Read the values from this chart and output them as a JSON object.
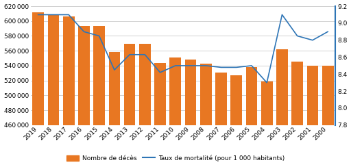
{
  "years": [
    "2019",
    "2018",
    "2017",
    "2016",
    "2015",
    "2014",
    "2013",
    "2012",
    "2011",
    "2010",
    "2009",
    "2008",
    "2007",
    "2006",
    "2005",
    "2004",
    "2003",
    "2002",
    "2001",
    "2000"
  ],
  "deaths": [
    612000,
    608000,
    606000,
    593000,
    593000,
    558000,
    569000,
    569000,
    544000,
    551000,
    548000,
    543000,
    531000,
    527000,
    538000,
    519000,
    562000,
    545000,
    540000,
    540000
  ],
  "mortality_rate": [
    9.1,
    9.1,
    9.1,
    8.9,
    8.85,
    8.45,
    8.63,
    8.63,
    8.42,
    8.5,
    8.5,
    8.5,
    8.48,
    8.48,
    8.5,
    8.3,
    9.1,
    8.85,
    8.8,
    8.9
  ],
  "bar_color": "#E87722",
  "line_color": "#2E75B6",
  "ylim_left": [
    460000,
    620000
  ],
  "ylim_right": [
    7.8,
    9.2
  ],
  "yticks_left": [
    460000,
    480000,
    500000,
    520000,
    540000,
    560000,
    580000,
    600000,
    620000
  ],
  "yticks_right": [
    7.8,
    8.0,
    8.2,
    8.4,
    8.6,
    8.8,
    9.0,
    9.2
  ],
  "legend_deaths": "Nombre de décès",
  "legend_mortality": "Taux de mortalité (pour 1 000 habitants)",
  "background_color": "#FFFFFF",
  "grid_color": "#BFBFBF"
}
